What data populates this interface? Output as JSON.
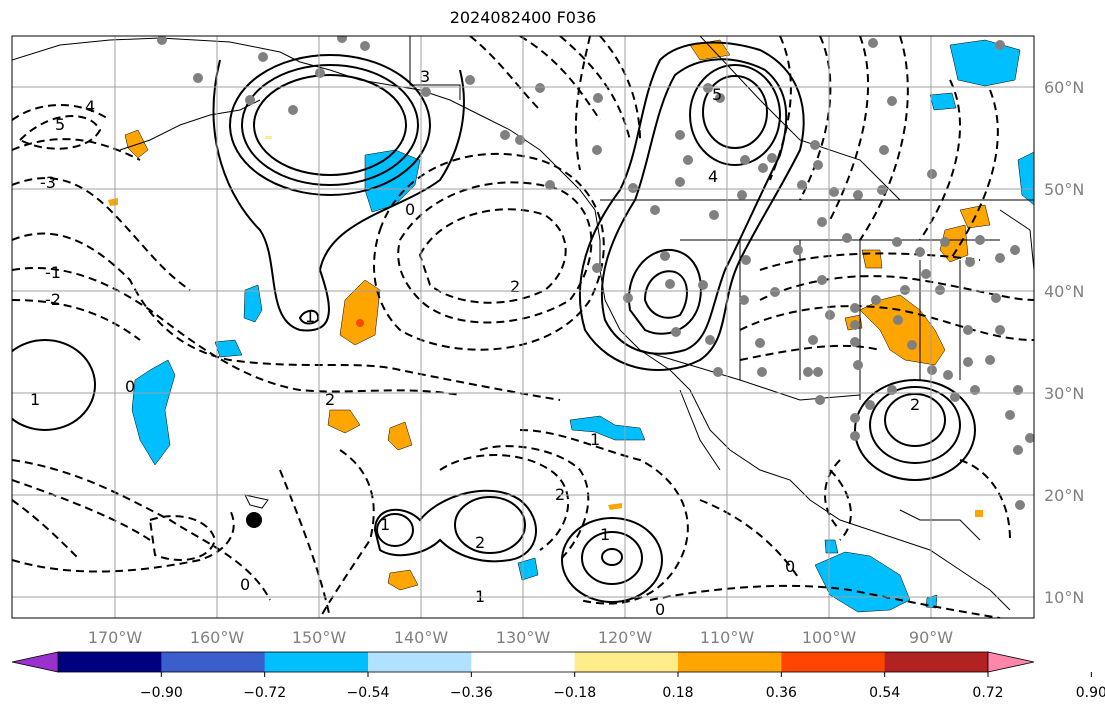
{
  "title": "2024082400 F036",
  "longitude_labels": [
    "170°W",
    "160°W",
    "150°W",
    "140°W",
    "130°W",
    "120°W",
    "110°W",
    "100°W",
    "90°W"
  ],
  "latitude_labels": [
    "60°N",
    "50°N",
    "40°N",
    "30°N",
    "20°N",
    "10°N"
  ],
  "colorbar": {
    "tick_labels": [
      "−0.90",
      "−0.72",
      "−0.54",
      "−0.36",
      "−0.18",
      "0.18",
      "0.36",
      "0.54",
      "0.72",
      "0.90"
    ],
    "colors": [
      "#9932cc",
      "#000080",
      "#3a5fcd",
      "#00bfff",
      "#b0e2ff",
      "#ffffff",
      "#ffec8b",
      "#ffa500",
      "#ff4500",
      "#b22222",
      "#ff88aa"
    ]
  },
  "contour_labels": [
    {
      "text": "4"
    },
    {
      "text": "5"
    },
    {
      "text": "3"
    },
    {
      "text": "2"
    },
    {
      "text": "1"
    },
    {
      "text": "0"
    },
    {
      "text": "2"
    },
    {
      "text": "1"
    },
    {
      "text": "0"
    },
    {
      "text": "-1"
    },
    {
      "text": "-2"
    },
    {
      "text": "2"
    },
    {
      "text": "1"
    },
    {
      "text": "1"
    },
    {
      "text": "2"
    },
    {
      "text": "0"
    },
    {
      "text": "1"
    },
    {
      "text": "0"
    },
    {
      "text": "4"
    },
    {
      "text": "5"
    },
    {
      "text": "2"
    },
    {
      "text": "0"
    },
    {
      "text": "1"
    },
    {
      "text": "-3"
    }
  ]
}
